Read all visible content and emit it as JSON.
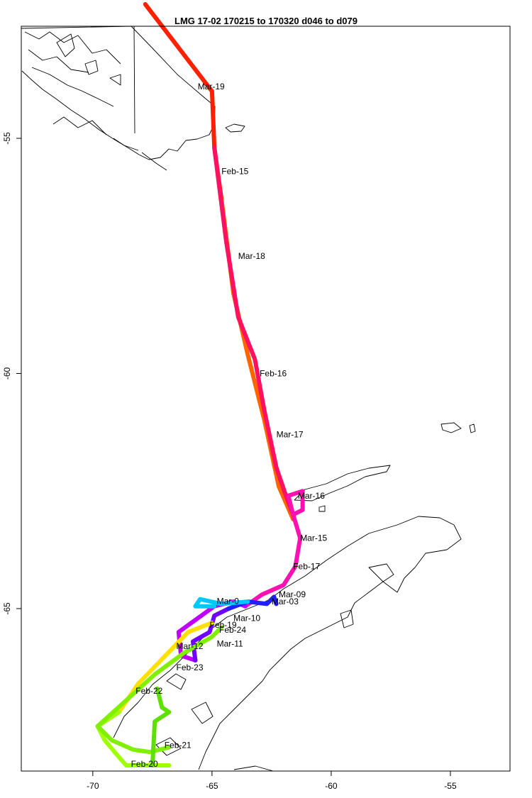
{
  "map": {
    "title": "LMG   17-02    170215 to 170320    d046 to d079",
    "x_axis": {
      "ticks": [
        {
          "value": -70,
          "label": "-70"
        },
        {
          "value": -65,
          "label": "-65"
        },
        {
          "value": -60,
          "label": "-60"
        },
        {
          "value": -55,
          "label": "-55"
        }
      ],
      "range": [
        -73.0,
        -52.5
      ]
    },
    "y_axis": {
      "ticks": [
        {
          "value": -55,
          "label": "-55"
        },
        {
          "value": -60,
          "label": "-60"
        },
        {
          "value": -65,
          "label": "-65"
        }
      ],
      "range": [
        -67.1,
        -51.8
      ]
    },
    "date_labels": [
      {
        "text": "Mar-19",
        "lon": -65.6,
        "lat": -53.9
      },
      {
        "text": "Feb-15",
        "lon": -64.6,
        "lat": -55.7
      },
      {
        "text": "Mar-18",
        "lon": -63.9,
        "lat": -57.5
      },
      {
        "text": "Feb-16",
        "lon": -63.0,
        "lat": -60.0
      },
      {
        "text": "Mar-17",
        "lon": -62.3,
        "lat": -61.3
      },
      {
        "text": "Mar-16",
        "lon": -61.4,
        "lat": -62.6
      },
      {
        "text": "Mar-15",
        "lon": -61.3,
        "lat": -63.5
      },
      {
        "text": "Feb-17",
        "lon": -61.6,
        "lat": -64.1
      },
      {
        "text": "Mar-09",
        "lon": -62.2,
        "lat": -64.7
      },
      {
        "text": "Mar-0",
        "lon": -64.8,
        "lat": -64.84
      },
      {
        "text": "Mar-03",
        "lon": -62.5,
        "lat": -64.85
      },
      {
        "text": "Mar-10",
        "lon": -64.1,
        "lat": -65.2
      },
      {
        "text": "Feb-19",
        "lon": -65.1,
        "lat": -65.35
      },
      {
        "text": "Feb-24",
        "lon": -64.7,
        "lat": -65.45
      },
      {
        "text": "Mar-11",
        "lon": -64.8,
        "lat": -65.75
      },
      {
        "text": "Mar-12",
        "lon": -66.5,
        "lat": -65.8
      },
      {
        "text": "Feb-23",
        "lon": -66.5,
        "lat": -66.25
      },
      {
        "text": "Feb-22",
        "lon": -68.2,
        "lat": -66.75
      },
      {
        "text": "Feb-21",
        "lon": -67.0,
        "lat": -67.9
      },
      {
        "text": "Feb-20",
        "lon": -68.4,
        "lat": -68.5
      }
    ],
    "tracks": [
      {
        "color": "#ff2000",
        "points": [
          [
            -67.8,
            -52.15
          ],
          [
            -65.0,
            -54.0
          ],
          [
            -64.9,
            -55.2
          ],
          [
            -64.6,
            -56.3
          ]
        ]
      },
      {
        "color": "#ff6400",
        "points": [
          [
            -64.6,
            -56.3
          ],
          [
            -64.1,
            -58.3
          ],
          [
            -63.5,
            -59.6
          ],
          [
            -62.8,
            -61.0
          ],
          [
            -62.2,
            -62.4
          ],
          [
            -61.6,
            -63.1
          ]
        ]
      },
      {
        "color": "#ff1060",
        "points": [
          [
            -64.9,
            -55.2
          ],
          [
            -64.4,
            -57.2
          ],
          [
            -63.9,
            -58.8
          ],
          [
            -63.2,
            -59.7
          ],
          [
            -62.8,
            -60.8
          ],
          [
            -62.3,
            -62.0
          ],
          [
            -61.9,
            -62.6
          ],
          [
            -61.6,
            -63.0
          ]
        ]
      },
      {
        "color": "#ff10b0",
        "points": [
          [
            -61.6,
            -63.0
          ],
          [
            -61.8,
            -62.6
          ],
          [
            -61.2,
            -62.5
          ],
          [
            -61.2,
            -62.9
          ],
          [
            -61.6,
            -63.0
          ],
          [
            -61.3,
            -63.5
          ],
          [
            -61.5,
            -64.1
          ],
          [
            -62.0,
            -64.5
          ],
          [
            -62.9,
            -64.7
          ],
          [
            -63.6,
            -64.95
          ]
        ]
      },
      {
        "color": "#c000ff",
        "points": [
          [
            -63.6,
            -64.95
          ],
          [
            -64.1,
            -64.85
          ],
          [
            -64.9,
            -64.95
          ],
          [
            -66.4,
            -65.5
          ],
          [
            -66.3,
            -66.0
          ],
          [
            -65.7,
            -66.1
          ]
        ]
      },
      {
        "color": "#7000ff",
        "points": [
          [
            -65.7,
            -66.1
          ],
          [
            -65.8,
            -65.7
          ],
          [
            -65.1,
            -65.5
          ],
          [
            -64.9,
            -65.15
          ],
          [
            -64.3,
            -65.0
          ]
        ]
      },
      {
        "color": "#2020ff",
        "points": [
          [
            -64.3,
            -65.0
          ],
          [
            -63.5,
            -64.85
          ],
          [
            -62.7,
            -64.9
          ],
          [
            -62.4,
            -64.75
          ],
          [
            -62.3,
            -64.9
          ]
        ]
      },
      {
        "color": "#00c8ff",
        "points": [
          [
            -63.5,
            -64.85
          ],
          [
            -64.6,
            -64.9
          ],
          [
            -65.5,
            -64.8
          ],
          [
            -65.7,
            -64.95
          ],
          [
            -64.9,
            -64.95
          ]
        ]
      },
      {
        "color": "#ffe000",
        "points": [
          [
            -65.0,
            -65.3
          ],
          [
            -66.0,
            -65.5
          ],
          [
            -68.1,
            -66.6
          ],
          [
            -68.9,
            -67.2
          ]
        ]
      },
      {
        "color": "#a0ff00",
        "points": [
          [
            -68.9,
            -67.2
          ],
          [
            -69.8,
            -67.5
          ],
          [
            -69.5,
            -67.8
          ],
          [
            -69.0,
            -68.1
          ],
          [
            -68.6,
            -68.4
          ],
          [
            -67.6,
            -68.5
          ],
          [
            -66.8,
            -68.45
          ]
        ]
      },
      {
        "color": "#80f000",
        "points": [
          [
            -66.8,
            -67.95
          ],
          [
            -67.6,
            -68.05
          ],
          [
            -68.3,
            -68.0
          ],
          [
            -69.2,
            -67.8
          ],
          [
            -69.8,
            -67.5
          ],
          [
            -68.6,
            -66.95
          ],
          [
            -67.4,
            -66.4
          ],
          [
            -66.2,
            -65.95
          ],
          [
            -65.0,
            -65.6
          ],
          [
            -64.6,
            -65.4
          ]
        ]
      },
      {
        "color": "#60e000",
        "points": [
          [
            -67.3,
            -66.7
          ],
          [
            -67.1,
            -67.1
          ],
          [
            -66.8,
            -67.2
          ],
          [
            -67.4,
            -67.4
          ],
          [
            -67.5,
            -68.4
          ]
        ]
      }
    ]
  }
}
